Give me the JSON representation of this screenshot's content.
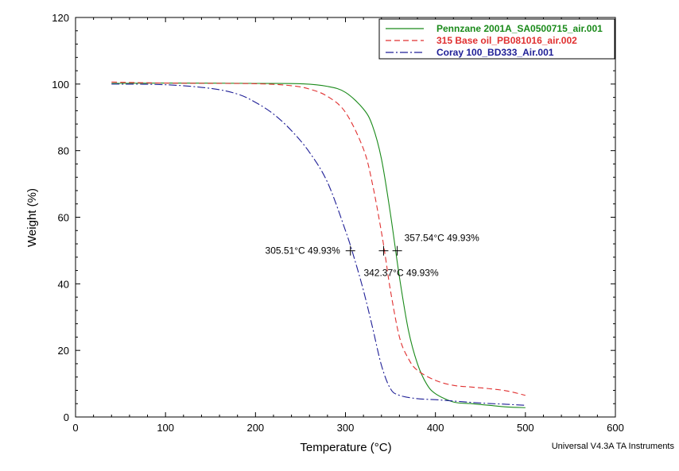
{
  "chart_data": {
    "type": "line",
    "title": "",
    "xlabel": "Temperature (°C)",
    "ylabel": "Weight (%)",
    "xlim": [
      0,
      600
    ],
    "ylim": [
      0,
      120
    ],
    "x_ticks": [
      0,
      100,
      200,
      300,
      400,
      500,
      600
    ],
    "y_ticks": [
      0,
      20,
      40,
      60,
      80,
      100,
      120
    ],
    "grid": false,
    "legend_position": "top-right",
    "series": [
      {
        "name": "Pennzane 2001A_SA0500715_air.001",
        "color": "#1a8a1a",
        "line_style": "solid",
        "x": [
          40,
          100,
          200,
          250,
          280,
          300,
          320,
          330,
          340,
          350,
          360,
          370,
          380,
          390,
          400,
          420,
          440,
          460,
          480,
          500
        ],
        "y": [
          100.2,
          100.3,
          100.2,
          100.1,
          99.3,
          97.5,
          92.5,
          87.5,
          77.5,
          61.0,
          42.0,
          26.0,
          16.0,
          10.0,
          7.0,
          4.5,
          4.0,
          3.5,
          3.0,
          2.8
        ]
      },
      {
        "name": "315 Base oil_PB081016_air.002",
        "color": "#e03030",
        "line_style": "dashed",
        "x": [
          40,
          100,
          200,
          240,
          260,
          280,
          300,
          320,
          330,
          340,
          345,
          350,
          360,
          370,
          380,
          400,
          420,
          440,
          460,
          480,
          500
        ],
        "y": [
          100.6,
          100.3,
          100.1,
          99.5,
          98.5,
          96.3,
          91.5,
          80.5,
          70.0,
          55.5,
          47.0,
          38.0,
          24.0,
          17.5,
          14.0,
          11.0,
          9.5,
          9.0,
          8.5,
          7.8,
          6.5
        ]
      },
      {
        "name": "Coray 100_BD333_Air.001",
        "color": "#1e1e96",
        "line_style": "dash-dot",
        "x": [
          40,
          100,
          150,
          180,
          200,
          220,
          240,
          260,
          280,
          300,
          310,
          320,
          330,
          340,
          350,
          360,
          380,
          400,
          420,
          450,
          480,
          500
        ],
        "y": [
          100.0,
          99.8,
          98.7,
          97.0,
          94.5,
          91.0,
          86.0,
          79.5,
          70.5,
          56.0,
          47.5,
          38.0,
          27.0,
          15.5,
          8.5,
          6.5,
          5.5,
          5.2,
          4.8,
          4.2,
          3.8,
          3.5
        ]
      }
    ],
    "annotations": [
      {
        "text": "305.51°C 49.93%",
        "x": 305.51,
        "y": 49.93,
        "label_side": "left"
      },
      {
        "text": "342.37°C 49.93%",
        "x": 342.37,
        "y": 49.93,
        "label_side": "below"
      },
      {
        "text": "357.54°C 49.93%",
        "x": 357.54,
        "y": 49.93,
        "label_side": "right"
      }
    ]
  },
  "footer": "Universal V4.3A TA Instruments"
}
